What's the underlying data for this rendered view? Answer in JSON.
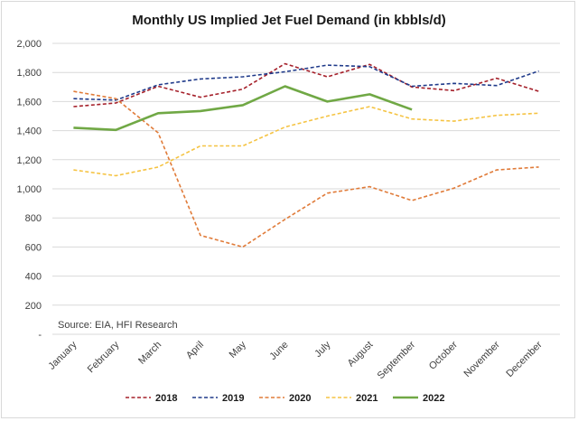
{
  "chart_data": {
    "type": "line",
    "title": "Monthly US Implied Jet Fuel Demand (in kbbls/d)",
    "xlabel": "",
    "ylabel": "",
    "ylim": [
      0,
      2000
    ],
    "y_ticks": [
      "2,000",
      "1,800",
      "1,600",
      "1,400",
      "1,200",
      "1,000",
      "800",
      "600",
      "400",
      "200",
      "-"
    ],
    "y_tick_values": [
      2000,
      1800,
      1600,
      1400,
      1200,
      1000,
      800,
      600,
      400,
      200,
      0
    ],
    "categories": [
      "January",
      "February",
      "March",
      "April",
      "May",
      "June",
      "July",
      "August",
      "September",
      "October",
      "November",
      "December"
    ],
    "source": "Source: EIA, HFI Research",
    "gridlines": true,
    "legend_position": "bottom",
    "series": [
      {
        "name": "2018",
        "color": "#a5202a",
        "dash": "dashed",
        "width": 1.6,
        "values": [
          1565,
          1590,
          1705,
          1630,
          1685,
          1860,
          1770,
          1855,
          1700,
          1675,
          1760,
          1670
        ]
      },
      {
        "name": "2019",
        "color": "#1f3a8a",
        "dash": "dashed",
        "width": 1.6,
        "values": [
          1620,
          1610,
          1715,
          1755,
          1770,
          1805,
          1850,
          1840,
          1705,
          1725,
          1710,
          1810
        ]
      },
      {
        "name": "2020",
        "color": "#e07b39",
        "dash": "dashed",
        "width": 1.6,
        "values": [
          1670,
          1620,
          1385,
          680,
          600,
          790,
          970,
          1015,
          920,
          1005,
          1130,
          1150
        ]
      },
      {
        "name": "2021",
        "color": "#f5c342",
        "dash": "dashed",
        "width": 1.6,
        "values": [
          1130,
          1090,
          1150,
          1295,
          1295,
          1425,
          1500,
          1565,
          1480,
          1465,
          1505,
          1520
        ]
      },
      {
        "name": "2022",
        "color": "#70a845",
        "dash": "solid",
        "width": 2.6,
        "values": [
          1420,
          1405,
          1520,
          1535,
          1575,
          1705,
          1600,
          1650,
          1545,
          null,
          null,
          null
        ]
      }
    ]
  }
}
